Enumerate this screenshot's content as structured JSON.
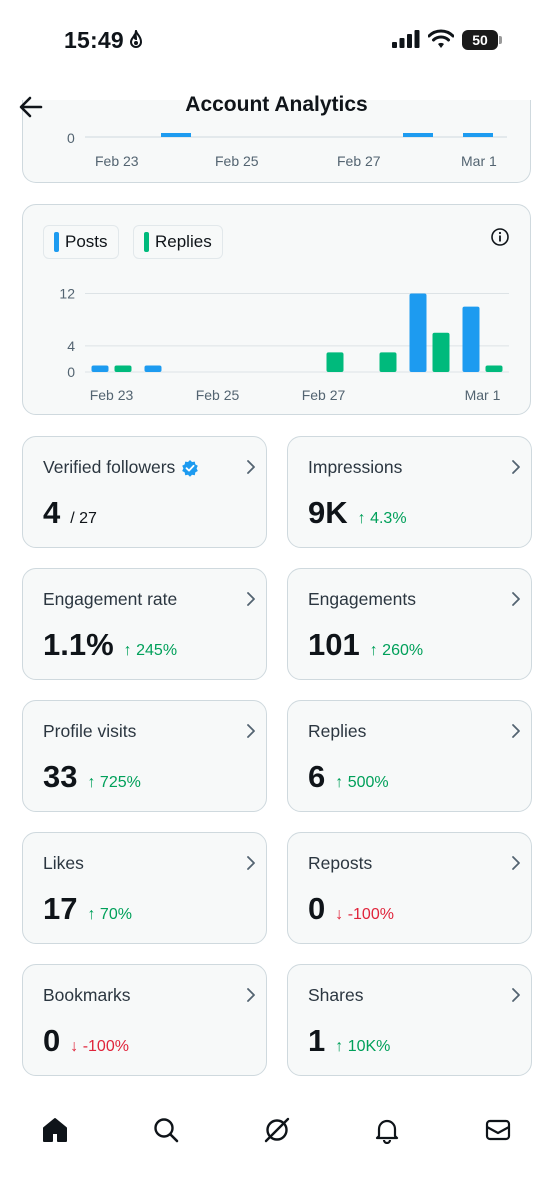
{
  "status_bar": {
    "time": "15:49",
    "battery_level": "50"
  },
  "header": {
    "title": "Account Analytics"
  },
  "top_chart": {
    "y_tick": "0",
    "x_ticks": [
      "Feb 23",
      "Feb 25",
      "Feb 27",
      "Mar 1"
    ]
  },
  "legend": {
    "posts": "Posts",
    "replies": "Replies"
  },
  "colors": {
    "posts": "#1d9bf0",
    "replies": "#00ba7c",
    "up": "#00a05a",
    "down": "#e0243b"
  },
  "chart_data": {
    "type": "bar",
    "categories": [
      "Feb 23",
      "Feb 24",
      "Feb 25",
      "Feb 26",
      "Feb 27",
      "Feb 28",
      "Feb 29",
      "Mar 1"
    ],
    "x_tick_labels": [
      "Feb 23",
      "Feb 25",
      "Feb 27",
      "Mar 1"
    ],
    "y_tick_labels": [
      "0",
      "4",
      "12"
    ],
    "ylim": [
      0,
      13
    ],
    "series": [
      {
        "name": "Posts",
        "values": [
          1,
          1,
          0,
          0,
          0,
          0,
          12,
          10
        ]
      },
      {
        "name": "Replies",
        "values": [
          1,
          0,
          0,
          0,
          3,
          3,
          6,
          1
        ]
      }
    ],
    "grid": true,
    "legend": "top-left"
  },
  "metrics": [
    {
      "label": "Verified followers",
      "value": "4",
      "sub": "/ 27",
      "change": "",
      "direction": "none",
      "verified": true
    },
    {
      "label": "Impressions",
      "value": "9K",
      "sub": "",
      "change": "↑ 4.3%",
      "direction": "up"
    },
    {
      "label": "Engagement rate",
      "value": "1.1%",
      "sub": "",
      "change": "↑ 245%",
      "direction": "up"
    },
    {
      "label": "Engagements",
      "value": "101",
      "sub": "",
      "change": "↑ 260%",
      "direction": "up"
    },
    {
      "label": "Profile visits",
      "value": "33",
      "sub": "",
      "change": "↑ 725%",
      "direction": "up"
    },
    {
      "label": "Replies",
      "value": "6",
      "sub": "",
      "change": "↑ 500%",
      "direction": "up"
    },
    {
      "label": "Likes",
      "value": "17",
      "sub": "",
      "change": "↑ 70%",
      "direction": "up"
    },
    {
      "label": "Reposts",
      "value": "0",
      "sub": "",
      "change": "↓ -100%",
      "direction": "down"
    },
    {
      "label": "Bookmarks",
      "value": "0",
      "sub": "",
      "change": "↓ -100%",
      "direction": "down"
    },
    {
      "label": "Shares",
      "value": "1",
      "sub": "",
      "change": "↑ 10K%",
      "direction": "up"
    }
  ],
  "nav": {
    "items": [
      "home-icon",
      "search-icon",
      "grok-icon",
      "notifications-icon",
      "messages-icon"
    ]
  }
}
